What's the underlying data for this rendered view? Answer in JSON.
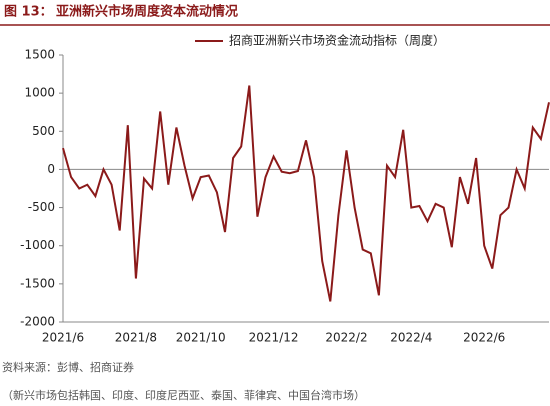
{
  "chart_data": {
    "type": "line",
    "figure_label": "图 13：",
    "title": "亚洲新兴市场周度资本流动情况",
    "categories": [
      "2021/6",
      null,
      null,
      null,
      null,
      null,
      null,
      null,
      null,
      "2021/8",
      null,
      null,
      null,
      null,
      null,
      null,
      null,
      "2021/10",
      null,
      null,
      null,
      null,
      null,
      null,
      null,
      null,
      "2021/12",
      null,
      null,
      null,
      null,
      null,
      null,
      null,
      null,
      "2022/2",
      null,
      null,
      null,
      null,
      null,
      null,
      null,
      "2022/4",
      null,
      null,
      null,
      null,
      null,
      null,
      null,
      null,
      "2022/6",
      null,
      null,
      null,
      null,
      null,
      null,
      null,
      null
    ],
    "series": [
      {
        "name": "招商亚洲新兴市场资金流动指标（周度）",
        "color": "#8b1a1a",
        "values": [
          280,
          -100,
          -250,
          -200,
          -350,
          0,
          -200,
          -800,
          580,
          -1430,
          -120,
          -250,
          760,
          -200,
          550,
          50,
          -380,
          -100,
          -80,
          -300,
          -820,
          150,
          300,
          1100,
          -620,
          -100,
          170,
          -30,
          -50,
          -20,
          380,
          -100,
          -1200,
          -1730,
          -600,
          250,
          -500,
          -1050,
          -1100,
          -1650,
          50,
          -100,
          520,
          -500,
          -480,
          -680,
          -450,
          -500,
          -1020,
          -100,
          -450,
          150,
          -1000,
          -1300,
          -600,
          -500,
          0,
          -250,
          550,
          400,
          880
        ]
      }
    ],
    "ylim": [
      -2000,
      1500
    ],
    "yticks": [
      -2000,
      -1500,
      -1000,
      -500,
      0,
      500,
      1000,
      1500
    ],
    "legend": "top-right",
    "source": "资料来源：彭博、招商证券",
    "note": "（新兴市场包括韩国、印度、印度尼西亚、泰国、菲律宾、中国台湾市场）"
  }
}
